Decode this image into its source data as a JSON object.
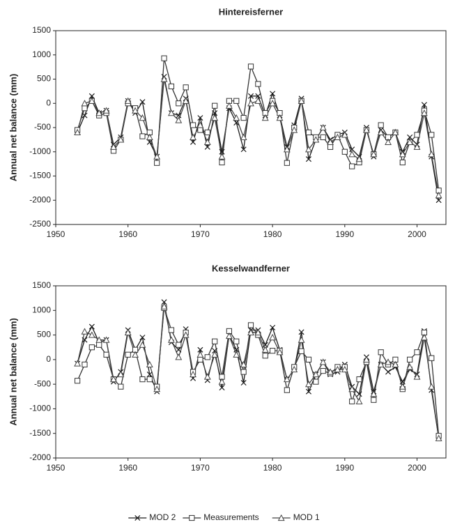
{
  "chart_data": [
    {
      "type": "line",
      "title": "Hintereisferner",
      "y_label": "Annual net balance (mm)",
      "x": [
        1953,
        1954,
        1955,
        1956,
        1957,
        1958,
        1959,
        1960,
        1961,
        1962,
        1963,
        1964,
        1965,
        1966,
        1967,
        1968,
        1969,
        1970,
        1971,
        1972,
        1973,
        1974,
        1975,
        1976,
        1977,
        1978,
        1979,
        1980,
        1981,
        1982,
        1983,
        1984,
        1985,
        1986,
        1987,
        1988,
        1989,
        1990,
        1991,
        1992,
        1993,
        1994,
        1995,
        1996,
        1997,
        1998,
        1999,
        2000,
        2001,
        2002,
        2003
      ],
      "series": [
        {
          "name": "MOD 2",
          "color": "#1a1a1a",
          "marker": "x",
          "values": [
            -600,
            -250,
            150,
            -200,
            -150,
            -850,
            -700,
            50,
            -200,
            30,
            -800,
            -1100,
            550,
            -200,
            -250,
            100,
            -800,
            -300,
            -900,
            -200,
            -1000,
            -100,
            -400,
            -950,
            150,
            150,
            -250,
            200,
            -250,
            -900,
            -450,
            100,
            -1150,
            -750,
            -500,
            -750,
            -650,
            -600,
            -950,
            -1100,
            -500,
            -1100,
            -550,
            -700,
            -600,
            -1000,
            -700,
            -850,
            -30,
            -1100,
            -2000
          ]
        },
        {
          "name": "Measurements",
          "color": "#333333",
          "marker": "square",
          "values": [
            -550,
            -100,
            50,
            -250,
            -200,
            -980,
            -750,
            0,
            -100,
            -680,
            -600,
            -1230,
            930,
            350,
            0,
            330,
            -450,
            -550,
            -600,
            -50,
            -1220,
            50,
            50,
            -300,
            760,
            400,
            -200,
            50,
            -200,
            -1230,
            -500,
            50,
            -600,
            -700,
            -700,
            -900,
            -650,
            -1000,
            -1300,
            -1220,
            -550,
            -1050,
            -450,
            -700,
            -600,
            -1220,
            -800,
            -650,
            -150,
            -650,
            -1800
          ]
        },
        {
          "name": "MOD 1",
          "color": "#444444",
          "marker": "triangle",
          "values": [
            -600,
            0,
            50,
            -200,
            -150,
            -900,
            -750,
            50,
            -150,
            -300,
            -700,
            -1100,
            500,
            -200,
            -350,
            50,
            -700,
            -450,
            -800,
            -300,
            -1100,
            -50,
            -300,
            -700,
            0,
            50,
            -300,
            0,
            -300,
            -950,
            -550,
            50,
            -950,
            -750,
            -500,
            -800,
            -700,
            -650,
            -1050,
            -1150,
            -550,
            -1050,
            -600,
            -800,
            -600,
            -1050,
            -800,
            -900,
            -200,
            -1050,
            -1900
          ]
        }
      ],
      "xlim": [
        1950,
        2004
      ],
      "xticks": [
        1950,
        1960,
        1970,
        1980,
        1990,
        2000
      ],
      "ylim": [
        -2500,
        1500
      ],
      "yticks": [
        -2500,
        -2000,
        -1500,
        -1000,
        -500,
        0,
        500,
        1000,
        1500
      ],
      "legend": false
    },
    {
      "type": "line",
      "title": "Kesselwandferner",
      "y_label": "Annual net balance (mm)",
      "x": [
        1953,
        1954,
        1955,
        1956,
        1957,
        1958,
        1959,
        1960,
        1961,
        1962,
        1963,
        1964,
        1965,
        1966,
        1967,
        1968,
        1969,
        1970,
        1971,
        1972,
        1973,
        1974,
        1975,
        1976,
        1977,
        1978,
        1979,
        1980,
        1981,
        1982,
        1983,
        1984,
        1985,
        1986,
        1987,
        1988,
        1989,
        1990,
        1991,
        1992,
        1993,
        1994,
        1995,
        1996,
        1997,
        1998,
        1999,
        2000,
        2001,
        2002,
        2003
      ],
      "series": [
        {
          "name": "MOD 2",
          "color": "#1a1a1a",
          "marker": "x",
          "values": [
            -80,
            400,
            670,
            350,
            400,
            -450,
            -250,
            600,
            200,
            450,
            -300,
            -650,
            1170,
            350,
            200,
            620,
            -380,
            200,
            -420,
            180,
            -570,
            500,
            200,
            -470,
            600,
            600,
            300,
            650,
            200,
            -400,
            -200,
            560,
            -650,
            -300,
            -50,
            -300,
            -250,
            -100,
            -550,
            -700,
            50,
            -650,
            -100,
            -250,
            -150,
            -450,
            -200,
            -300,
            580,
            -620,
            -1600
          ]
        },
        {
          "name": "Measurements",
          "color": "#333333",
          "marker": "square",
          "values": [
            -430,
            -100,
            250,
            300,
            100,
            -400,
            -550,
            100,
            200,
            -400,
            -400,
            -550,
            1050,
            600,
            300,
            550,
            -250,
            0,
            50,
            370,
            -350,
            580,
            370,
            -250,
            700,
            500,
            80,
            180,
            180,
            -620,
            -150,
            170,
            0,
            -450,
            -230,
            -280,
            -150,
            -150,
            -850,
            -400,
            -50,
            -820,
            150,
            -100,
            0,
            -600,
            0,
            150,
            550,
            30,
            -1550
          ]
        },
        {
          "name": "MOD 1",
          "color": "#444444",
          "marker": "triangle",
          "values": [
            -80,
            570,
            500,
            400,
            400,
            -400,
            -300,
            550,
            100,
            300,
            -100,
            -600,
            1080,
            400,
            50,
            500,
            -300,
            100,
            -350,
            100,
            -450,
            480,
            100,
            -100,
            550,
            550,
            200,
            450,
            150,
            -400,
            -200,
            400,
            -500,
            -300,
            -50,
            -250,
            -200,
            -200,
            -600,
            -850,
            0,
            -700,
            -100,
            -50,
            -100,
            -550,
            -150,
            -350,
            450,
            -550,
            -1600
          ]
        }
      ],
      "xlim": [
        1950,
        2004
      ],
      "xticks": [
        1950,
        1960,
        1970,
        1980,
        1990,
        2000
      ],
      "ylim": [
        -2000,
        1500
      ],
      "yticks": [
        -2000,
        -1500,
        -1000,
        -500,
        0,
        500,
        1000,
        1500
      ],
      "legend": "bottom"
    }
  ]
}
